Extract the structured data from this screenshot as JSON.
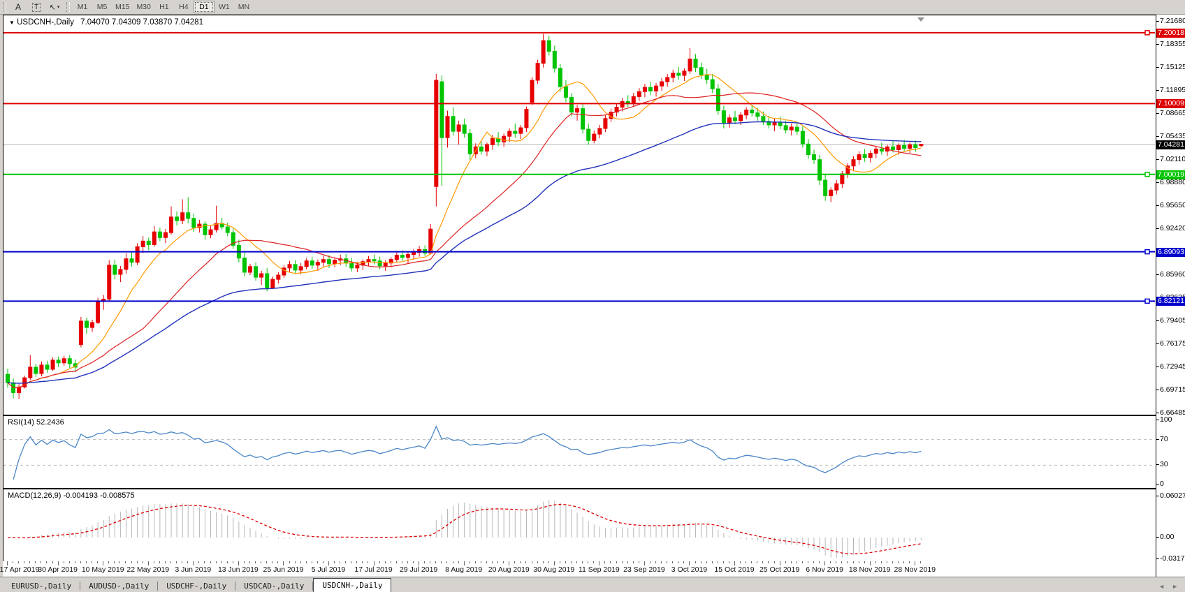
{
  "toolbar": {
    "a_label": "A",
    "t_label": "T",
    "cursor_tool": "cursor-dropdown",
    "timeframes": [
      "M1",
      "M5",
      "M15",
      "M30",
      "H1",
      "H4",
      "D1",
      "W1",
      "MN"
    ],
    "active_timeframe": "D1"
  },
  "chart": {
    "title_symbol": "USDCNH-,Daily",
    "title_ohlc": "7.04070 7.04309 7.03870 7.04281",
    "price_ticks": [
      [
        "7.21680",
        0
      ],
      [
        "7.18355",
        1
      ],
      [
        "7.15125",
        2
      ],
      [
        "7.11895",
        3
      ],
      [
        "7.08665",
        4
      ],
      [
        "7.05435",
        5
      ],
      [
        "7.02110",
        6
      ],
      [
        "6.98880",
        7
      ],
      [
        "6.95650",
        8
      ],
      [
        "6.92420",
        9
      ],
      [
        "6.85960",
        11
      ],
      [
        "6.82635",
        12
      ],
      [
        "6.79405",
        13
      ],
      [
        "6.76175",
        14
      ],
      [
        "6.72945",
        15
      ],
      [
        "6.69715",
        16
      ],
      [
        "6.66485",
        17
      ]
    ],
    "current_price": {
      "value": 7.04281,
      "label": "7.04281",
      "line_color": "#b8b8b8",
      "tag_bg": "#000000"
    },
    "hlines": [
      {
        "price": 7.20018,
        "label": "7.20018",
        "color": "#dd0000",
        "handle": true
      },
      {
        "price": 7.10009,
        "label": "7.10009",
        "color": "#dd0000",
        "handle": false
      },
      {
        "price": 7.00019,
        "label": "7.00019",
        "color": "#00c400",
        "handle": true
      },
      {
        "price": 6.89093,
        "label": "6.89093",
        "color": "#0000cc",
        "handle": true
      },
      {
        "price": 6.82121,
        "label": "6.82121",
        "color": "#0000cc",
        "handle": true
      }
    ],
    "candle_colors": {
      "up": "#e60000",
      "down": "#00c400"
    },
    "moving_averages": [
      {
        "period": 10,
        "color": "#ff9900",
        "width": 1.2
      },
      {
        "period": 25,
        "color": "#dd2222",
        "width": 1.2
      },
      {
        "period": 55,
        "color": "#2233bb",
        "width": 1.4
      }
    ]
  },
  "rsi_panel": {
    "label": "RSI(14) 52.2436",
    "period": 14,
    "levels": [
      [
        "100",
        100
      ],
      [
        "70",
        70
      ],
      [
        "30",
        30
      ],
      [
        "0",
        0
      ]
    ],
    "dashed_levels": [
      70,
      30
    ],
    "line_color": "#4a86c8"
  },
  "macd_panel": {
    "label": "MACD(12,26,9) -0.004193 -0.008575",
    "fast": 12,
    "slow": 26,
    "signal": 9,
    "axis": [
      [
        "0.060273",
        0.060273
      ],
      [
        "0.00",
        0.0
      ],
      [
        "-0.031725",
        -0.031725
      ]
    ],
    "hist_color": "#b6b6b6",
    "signal_color": "#dd0000"
  },
  "tabs": {
    "items": [
      "EURUSD-,Daily",
      "AUDUSD-,Daily",
      "USDCHF-,Daily",
      "USDCAD-,Daily",
      "USDCNH-,Daily"
    ],
    "active": "USDCNH-,Daily",
    "scroll_left": "◄",
    "scroll_right": "►"
  },
  "chart_data": {
    "type": "candlestick",
    "symbol": "USDCNH",
    "timeframe": "Daily",
    "price_range": {
      "top": 7.2168,
      "bottom": 6.66485
    },
    "date_ticks": [
      [
        "17 Apr 2019",
        0
      ],
      [
        "30 Apr 2019",
        9
      ],
      [
        "10 May 2019",
        17
      ],
      [
        "22 May 2019",
        25
      ],
      [
        "3 Jun 2019",
        33
      ],
      [
        "13 Jun 2019",
        41
      ],
      [
        "25 Jun 2019",
        49
      ],
      [
        "5 Jul 2019",
        57
      ],
      [
        "17 Jul 2019",
        65
      ],
      [
        "29 Jul 2019",
        73
      ],
      [
        "8 Aug 2019",
        81
      ],
      [
        "20 Aug 2019",
        89
      ],
      [
        "30 Aug 2019",
        97
      ],
      [
        "11 Sep 2019",
        105
      ],
      [
        "23 Sep 2019",
        113
      ],
      [
        "3 Oct 2019",
        121
      ],
      [
        "15 Oct 2019",
        129
      ],
      [
        "25 Oct 2019",
        137
      ],
      [
        "6 Nov 2019",
        145
      ],
      [
        "18 Nov 2019",
        153
      ],
      [
        "28 Nov 2019",
        161
      ]
    ],
    "ohlc": [
      [
        6.718,
        6.726,
        6.699,
        6.706
      ],
      [
        6.706,
        6.712,
        6.684,
        6.692
      ],
      [
        6.692,
        6.704,
        6.683,
        6.7
      ],
      [
        6.7,
        6.716,
        6.698,
        6.713
      ],
      [
        6.713,
        6.745,
        6.71,
        6.728
      ],
      [
        6.728,
        6.733,
        6.714,
        6.719
      ],
      [
        6.719,
        6.736,
        6.715,
        6.731
      ],
      [
        6.731,
        6.737,
        6.72,
        6.725
      ],
      [
        6.725,
        6.742,
        6.723,
        6.738
      ],
      [
        6.738,
        6.743,
        6.728,
        6.734
      ],
      [
        6.734,
        6.744,
        6.73,
        6.74
      ],
      [
        6.74,
        6.745,
        6.727,
        6.733
      ],
      [
        6.733,
        6.739,
        6.721,
        6.728
      ],
      [
        6.76,
        6.799,
        6.756,
        6.793
      ],
      [
        6.793,
        6.798,
        6.775,
        6.784
      ],
      [
        6.784,
        6.795,
        6.778,
        6.791
      ],
      [
        6.791,
        6.826,
        6.789,
        6.821
      ],
      [
        6.821,
        6.83,
        6.809,
        6.824
      ],
      [
        6.824,
        6.879,
        6.822,
        6.872
      ],
      [
        6.872,
        6.88,
        6.852,
        6.859
      ],
      [
        6.859,
        6.871,
        6.848,
        6.866
      ],
      [
        6.866,
        6.889,
        6.86,
        6.881
      ],
      [
        6.881,
        6.891,
        6.87,
        6.876
      ],
      [
        6.876,
        6.903,
        6.872,
        6.898
      ],
      [
        6.898,
        6.913,
        6.889,
        6.906
      ],
      [
        6.906,
        6.911,
        6.893,
        6.901
      ],
      [
        6.901,
        6.927,
        6.898,
        6.919
      ],
      [
        6.919,
        6.925,
        6.906,
        6.911
      ],
      [
        6.911,
        6.923,
        6.903,
        6.918
      ],
      [
        6.918,
        6.955,
        6.915,
        6.94
      ],
      [
        6.94,
        6.948,
        6.928,
        6.935
      ],
      [
        6.935,
        6.965,
        6.93,
        6.946
      ],
      [
        6.946,
        6.968,
        6.931,
        6.938
      ],
      [
        6.938,
        6.945,
        6.919,
        6.925
      ],
      [
        6.925,
        6.936,
        6.918,
        6.93
      ],
      [
        6.93,
        6.934,
        6.908,
        6.915
      ],
      [
        6.915,
        6.928,
        6.91,
        6.922
      ],
      [
        6.922,
        6.956,
        6.918,
        6.931
      ],
      [
        6.931,
        6.939,
        6.922,
        6.926
      ],
      [
        6.926,
        6.932,
        6.913,
        6.918
      ],
      [
        6.918,
        6.924,
        6.895,
        6.9
      ],
      [
        6.9,
        6.908,
        6.876,
        6.882
      ],
      [
        6.882,
        6.89,
        6.856,
        6.862
      ],
      [
        6.862,
        6.874,
        6.858,
        6.87
      ],
      [
        6.87,
        6.876,
        6.85,
        6.855
      ],
      [
        6.855,
        6.864,
        6.844,
        6.86
      ],
      [
        6.86,
        6.868,
        6.835,
        6.84
      ],
      [
        6.84,
        6.856,
        6.838,
        6.852
      ],
      [
        6.852,
        6.862,
        6.846,
        6.858
      ],
      [
        6.858,
        6.872,
        6.854,
        6.868
      ],
      [
        6.868,
        6.878,
        6.862,
        6.873
      ],
      [
        6.873,
        6.879,
        6.86,
        6.865
      ],
      [
        6.865,
        6.875,
        6.859,
        6.87
      ],
      [
        6.87,
        6.882,
        6.866,
        6.878
      ],
      [
        6.878,
        6.884,
        6.867,
        6.872
      ],
      [
        6.872,
        6.88,
        6.864,
        6.876
      ],
      [
        6.876,
        6.885,
        6.87,
        6.88
      ],
      [
        6.88,
        6.886,
        6.868,
        6.874
      ],
      [
        6.874,
        6.883,
        6.869,
        6.879
      ],
      [
        6.879,
        6.887,
        6.872,
        6.881
      ],
      [
        6.881,
        6.888,
        6.87,
        6.875
      ],
      [
        6.875,
        6.882,
        6.863,
        6.868
      ],
      [
        6.868,
        6.877,
        6.862,
        6.872
      ],
      [
        6.872,
        6.88,
        6.865,
        6.877
      ],
      [
        6.877,
        6.885,
        6.871,
        6.88
      ],
      [
        6.88,
        6.887,
        6.873,
        6.878
      ],
      [
        6.878,
        6.884,
        6.866,
        6.871
      ],
      [
        6.871,
        6.879,
        6.864,
        6.875
      ],
      [
        6.875,
        6.883,
        6.869,
        6.88
      ],
      [
        6.88,
        6.89,
        6.876,
        6.886
      ],
      [
        6.886,
        6.893,
        6.878,
        6.883
      ],
      [
        6.883,
        6.891,
        6.875,
        6.887
      ],
      [
        6.887,
        6.895,
        6.88,
        6.89
      ],
      [
        6.89,
        6.899,
        6.884,
        6.894
      ],
      [
        6.894,
        6.9,
        6.885,
        6.889
      ],
      [
        6.889,
        6.93,
        6.887,
        6.923
      ],
      [
        6.983,
        7.142,
        6.955,
        7.133
      ],
      [
        7.131,
        7.14,
        6.984,
        7.052
      ],
      [
        7.052,
        7.09,
        7.038,
        7.082
      ],
      [
        7.082,
        7.095,
        7.055,
        7.061
      ],
      [
        7.061,
        7.076,
        7.042,
        7.07
      ],
      [
        7.07,
        7.079,
        7.052,
        7.058
      ],
      [
        7.058,
        7.064,
        7.021,
        7.029
      ],
      [
        7.029,
        7.044,
        7.023,
        7.039
      ],
      [
        7.039,
        7.047,
        7.028,
        7.033
      ],
      [
        7.033,
        7.045,
        7.026,
        7.042
      ],
      [
        7.042,
        7.056,
        7.035,
        7.051
      ],
      [
        7.051,
        7.06,
        7.04,
        7.046
      ],
      [
        7.046,
        7.058,
        7.039,
        7.054
      ],
      [
        7.054,
        7.065,
        7.046,
        7.061
      ],
      [
        7.061,
        7.072,
        7.052,
        7.058
      ],
      [
        7.058,
        7.07,
        7.05,
        7.066
      ],
      [
        7.066,
        7.096,
        7.06,
        7.092
      ],
      [
        7.102,
        7.138,
        7.098,
        7.133
      ],
      [
        7.133,
        7.162,
        7.128,
        7.157
      ],
      [
        7.157,
        7.1985,
        7.151,
        7.189
      ],
      [
        7.189,
        7.196,
        7.168,
        7.174
      ],
      [
        7.174,
        7.182,
        7.144,
        7.15
      ],
      [
        7.15,
        7.156,
        7.117,
        7.124
      ],
      [
        7.124,
        7.133,
        7.102,
        7.109
      ],
      [
        7.109,
        7.115,
        7.082,
        7.088
      ],
      [
        7.088,
        7.098,
        7.076,
        7.093
      ],
      [
        7.093,
        7.099,
        7.058,
        7.064
      ],
      [
        7.064,
        7.072,
        7.042,
        7.048
      ],
      [
        7.048,
        7.062,
        7.044,
        7.057
      ],
      [
        7.057,
        7.07,
        7.051,
        7.065
      ],
      [
        7.065,
        7.084,
        7.06,
        7.079
      ],
      [
        7.079,
        7.093,
        7.074,
        7.088
      ],
      [
        7.088,
        7.1,
        7.082,
        7.095
      ],
      [
        7.095,
        7.108,
        7.089,
        7.103
      ],
      [
        7.103,
        7.112,
        7.095,
        7.101
      ],
      [
        7.101,
        7.115,
        7.096,
        7.11
      ],
      [
        7.11,
        7.122,
        7.104,
        7.117
      ],
      [
        7.117,
        7.128,
        7.109,
        7.123
      ],
      [
        7.123,
        7.131,
        7.112,
        7.118
      ],
      [
        7.118,
        7.129,
        7.11,
        7.125
      ],
      [
        7.125,
        7.136,
        7.118,
        7.131
      ],
      [
        7.131,
        7.142,
        7.124,
        7.137
      ],
      [
        7.137,
        7.148,
        7.13,
        7.143
      ],
      [
        7.143,
        7.152,
        7.134,
        7.14
      ],
      [
        7.14,
        7.15,
        7.132,
        7.146
      ],
      [
        7.146,
        7.1785,
        7.142,
        7.163
      ],
      [
        7.163,
        7.17,
        7.145,
        7.151
      ],
      [
        7.151,
        7.158,
        7.135,
        7.141
      ],
      [
        7.141,
        7.149,
        7.128,
        7.134
      ],
      [
        7.134,
        7.142,
        7.115,
        7.121
      ],
      [
        7.121,
        7.128,
        7.084,
        7.09
      ],
      [
        7.09,
        7.097,
        7.065,
        7.072
      ],
      [
        7.072,
        7.085,
        7.066,
        7.08
      ],
      [
        7.08,
        7.09,
        7.071,
        7.076
      ],
      [
        7.076,
        7.088,
        7.07,
        7.084
      ],
      [
        7.084,
        7.095,
        7.078,
        7.091
      ],
      [
        7.091,
        7.098,
        7.082,
        7.087
      ],
      [
        7.087,
        7.094,
        7.076,
        7.082
      ],
      [
        7.082,
        7.089,
        7.07,
        7.075
      ],
      [
        7.075,
        7.083,
        7.065,
        7.07
      ],
      [
        7.07,
        7.079,
        7.061,
        7.074
      ],
      [
        7.074,
        7.082,
        7.064,
        7.069
      ],
      [
        7.069,
        7.076,
        7.058,
        7.063
      ],
      [
        7.063,
        7.072,
        7.055,
        7.067
      ],
      [
        7.067,
        7.074,
        7.056,
        7.061
      ],
      [
        7.061,
        7.068,
        7.038,
        7.043
      ],
      [
        7.043,
        7.05,
        7.022,
        7.028
      ],
      [
        7.028,
        7.035,
        7.015,
        7.021
      ],
      [
        7.021,
        7.028,
        6.985,
        6.992
      ],
      [
        6.992,
        7.0,
        6.963,
        6.97
      ],
      [
        6.97,
        6.982,
        6.961,
        6.978
      ],
      [
        6.978,
        6.992,
        6.972,
        6.987
      ],
      [
        6.987,
        7.005,
        6.981,
        7.001
      ],
      [
        7.001,
        7.016,
        6.995,
        7.012
      ],
      [
        7.012,
        7.026,
        7.006,
        7.021
      ],
      [
        7.021,
        7.033,
        7.014,
        7.028
      ],
      [
        7.028,
        7.036,
        7.018,
        7.024
      ],
      [
        7.024,
        7.034,
        7.017,
        7.03
      ],
      [
        7.03,
        7.04,
        7.023,
        7.036
      ],
      [
        7.036,
        7.045,
        7.028,
        7.033
      ],
      [
        7.033,
        7.042,
        7.026,
        7.039
      ],
      [
        7.039,
        7.048,
        7.031,
        7.035
      ],
      [
        7.035,
        7.044,
        7.028,
        7.041
      ],
      [
        7.041,
        7.049,
        7.033,
        7.037
      ],
      [
        7.037,
        7.045,
        7.03,
        7.042
      ],
      [
        7.042,
        7.048,
        7.032,
        7.038
      ],
      [
        7.0407,
        7.0431,
        7.0387,
        7.0428
      ]
    ]
  }
}
